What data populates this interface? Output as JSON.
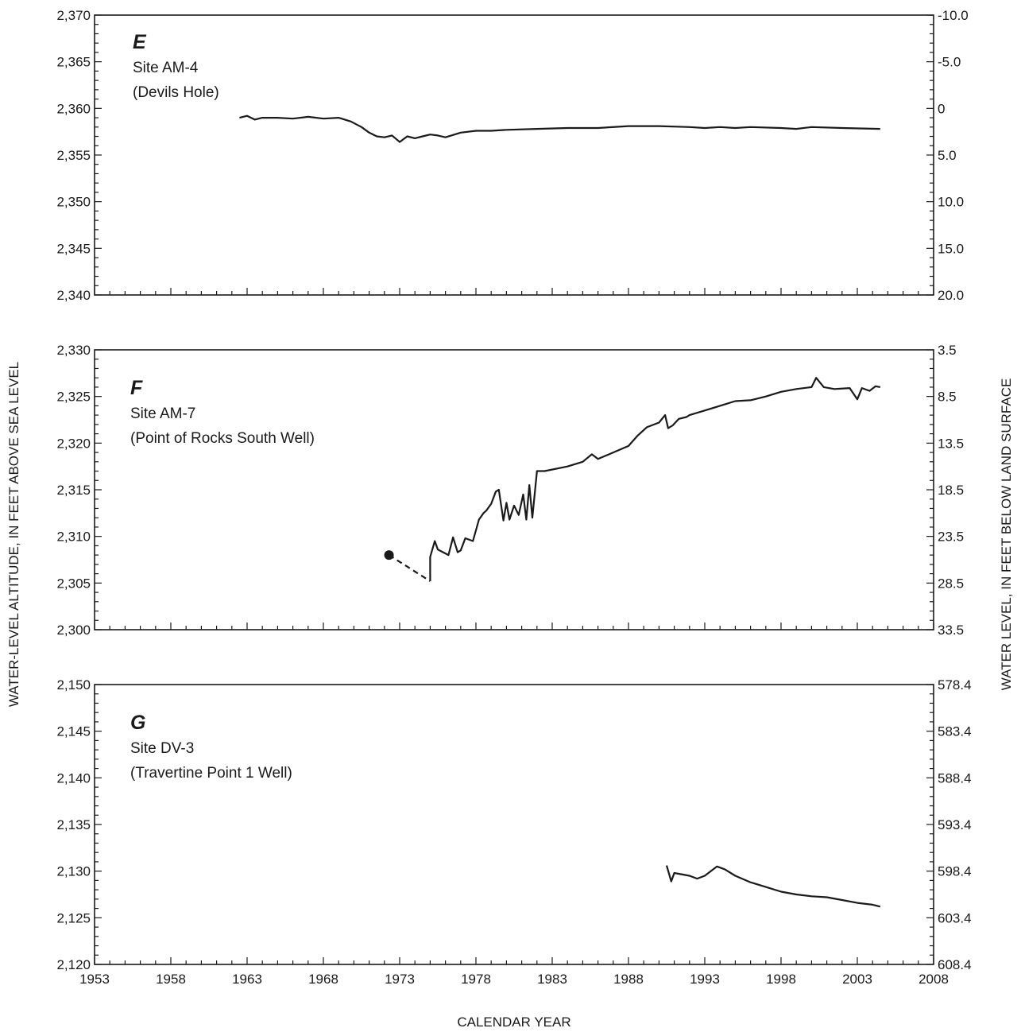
{
  "figure": {
    "left_axis_title": "WATER-LEVEL ALTITUDE, IN FEET ABOVE SEA LEVEL",
    "right_axis_title": "WATER LEVEL, IN FEET BELOW LAND SURFACE",
    "x_axis_title": "CALENDAR YEAR"
  },
  "chart_data": [
    {
      "type": "line",
      "panel_letter": "E",
      "site": "Site AM-4",
      "site_name": "(Devils Hole)",
      "xlim": [
        1953,
        2008
      ],
      "x_ticks": [
        "1953",
        "1958",
        "1963",
        "1968",
        "1973",
        "1978",
        "1983",
        "1988",
        "1993",
        "1998",
        "2003",
        "2008"
      ],
      "show_x_tick_labels": false,
      "ylim": [
        2340,
        2370
      ],
      "y_ticks": [
        "2,340",
        "2,345",
        "2,350",
        "2,355",
        "2,360",
        "2,365",
        "2,370"
      ],
      "right_ylim": [
        20.0,
        -10.0
      ],
      "right_y_ticks": [
        "20.0",
        "15.0",
        "10.0",
        "5.0",
        "0",
        "-5.0",
        "-10.0"
      ],
      "series": [
        {
          "style": "solid",
          "x": [
            1962.5,
            1963.0,
            1963.5,
            1964.0,
            1965.0,
            1966.0,
            1967.0,
            1968.0,
            1969.0,
            1969.8,
            1970.5,
            1971.0,
            1971.5,
            1972.0,
            1972.5,
            1973.0,
            1973.5,
            1974.0,
            1974.5,
            1975.0,
            1975.5,
            1976.0,
            1977.0,
            1978.0,
            1979.0,
            1980.0,
            1982.0,
            1984.0,
            1986.0,
            1988.0,
            1990.0,
            1992.0,
            1993.0,
            1994.0,
            1995.0,
            1996.0,
            1998.0,
            1999.0,
            2000.0,
            2002.0,
            2004.5
          ],
          "y": [
            2359.0,
            2359.2,
            2358.8,
            2359.0,
            2359.0,
            2358.9,
            2359.1,
            2358.9,
            2359.0,
            2358.6,
            2358.0,
            2357.4,
            2357.0,
            2356.9,
            2357.1,
            2356.4,
            2357.0,
            2356.8,
            2357.0,
            2357.2,
            2357.1,
            2356.9,
            2357.4,
            2357.6,
            2357.6,
            2357.7,
            2357.8,
            2357.9,
            2357.9,
            2358.1,
            2358.1,
            2358.0,
            2357.9,
            2358.0,
            2357.9,
            2358.0,
            2357.9,
            2357.8,
            2358.0,
            2357.9,
            2357.8
          ]
        }
      ]
    },
    {
      "type": "line",
      "panel_letter": "F",
      "site": "Site AM-7",
      "site_name": "(Point of Rocks South Well)",
      "xlim": [
        1953,
        2008
      ],
      "x_ticks": [
        "1953",
        "1958",
        "1963",
        "1968",
        "1973",
        "1978",
        "1983",
        "1988",
        "1993",
        "1998",
        "2003",
        "2008"
      ],
      "show_x_tick_labels": false,
      "ylim": [
        2300,
        2330
      ],
      "y_ticks": [
        "2,300",
        "2,305",
        "2,310",
        "2,315",
        "2,320",
        "2,325",
        "2,330"
      ],
      "right_ylim": [
        33.5,
        3.5
      ],
      "right_y_ticks": [
        "33.5",
        "28.5",
        "23.5",
        "18.5",
        "13.5",
        "8.5",
        "3.5"
      ],
      "series": [
        {
          "style": "marker",
          "x": [
            1972.3
          ],
          "y": [
            2308.0
          ]
        },
        {
          "style": "dashed",
          "x": [
            1972.3,
            1975.0
          ],
          "y": [
            2308.0,
            2305.2
          ]
        },
        {
          "style": "solid",
          "x": [
            1975.0,
            1975.0,
            1975.3,
            1975.5,
            1976.2,
            1976.5,
            1976.8,
            1977.0,
            1977.3,
            1977.8,
            1978.2,
            1978.5,
            1978.7,
            1979.0,
            1979.3,
            1979.5,
            1979.8,
            1980.0,
            1980.2,
            1980.5,
            1980.8,
            1981.1,
            1981.3,
            1981.5,
            1981.7,
            1982.0,
            1982.5,
            1984.0,
            1985.0,
            1985.6,
            1986.0,
            1987.0,
            1988.0,
            1988.6,
            1989.2,
            1990.0,
            1990.4,
            1990.6,
            1990.9,
            1991.3,
            1991.8,
            1992.0,
            1993.0,
            1994.0,
            1995.0,
            1996.0,
            1997.0,
            1998.0,
            1999.0,
            2000.0,
            2000.3,
            2000.8,
            2001.5,
            2002.5,
            2003.0,
            2003.3,
            2003.8,
            2004.2,
            2004.5
          ],
          "y": [
            2305.2,
            2307.8,
            2309.5,
            2308.6,
            2308.0,
            2309.9,
            2308.3,
            2308.5,
            2309.8,
            2309.5,
            2311.8,
            2312.5,
            2312.8,
            2313.5,
            2314.8,
            2315.0,
            2311.7,
            2313.6,
            2311.8,
            2313.3,
            2312.3,
            2314.5,
            2311.8,
            2315.5,
            2312.0,
            2317.0,
            2317.0,
            2317.5,
            2318.0,
            2318.8,
            2318.3,
            2319.0,
            2319.7,
            2320.8,
            2321.7,
            2322.2,
            2323.0,
            2321.6,
            2321.9,
            2322.6,
            2322.8,
            2323.0,
            2323.5,
            2324.0,
            2324.5,
            2324.6,
            2325.0,
            2325.5,
            2325.8,
            2326.0,
            2327.0,
            2326.0,
            2325.8,
            2325.9,
            2324.7,
            2325.9,
            2325.6,
            2326.1,
            2326.0
          ]
        }
      ]
    },
    {
      "type": "line",
      "panel_letter": "G",
      "site": "Site DV-3",
      "site_name": "(Travertine Point 1 Well)",
      "xlim": [
        1953,
        2008
      ],
      "x_ticks": [
        "1953",
        "1958",
        "1963",
        "1968",
        "1973",
        "1978",
        "1983",
        "1988",
        "1993",
        "1998",
        "2003",
        "2008"
      ],
      "show_x_tick_labels": true,
      "ylim": [
        2120,
        2150
      ],
      "y_ticks": [
        "2,120",
        "2,125",
        "2,130",
        "2,135",
        "2,140",
        "2,145",
        "2,150"
      ],
      "right_ylim": [
        608.4,
        578.4
      ],
      "right_y_ticks": [
        "608.4",
        "603.4",
        "598.4",
        "593.4",
        "588.4",
        "583.4",
        "578.4"
      ],
      "series": [
        {
          "style": "solid",
          "x": [
            1990.5,
            1990.8,
            1991.0,
            1992.0,
            1992.5,
            1993.0,
            1993.8,
            1994.3,
            1995.0,
            1996.0,
            1997.0,
            1998.0,
            1999.0,
            2000.0,
            2001.0,
            2002.0,
            2003.0,
            2004.0,
            2004.5
          ],
          "y": [
            2130.6,
            2128.9,
            2129.8,
            2129.5,
            2129.2,
            2129.5,
            2130.5,
            2130.2,
            2129.5,
            2128.8,
            2128.3,
            2127.8,
            2127.5,
            2127.3,
            2127.2,
            2126.9,
            2126.6,
            2126.4,
            2126.2
          ]
        }
      ]
    }
  ]
}
